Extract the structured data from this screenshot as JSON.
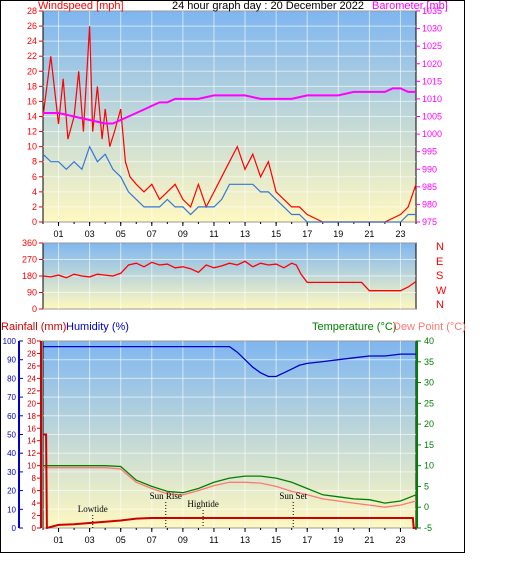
{
  "header": {
    "title": "24 hour graph day : 20 December 2022",
    "left_label": "Windspeed [mph]",
    "right_label": "Barometer [mb]"
  },
  "bottom_header": {
    "rain_label": "Rainfall (mm)",
    "humidity_label": "Humidity (%)",
    "temp_label": "Temperature (°C)",
    "dew_label": "Dew Point (°C)"
  },
  "colors": {
    "wind": "#ff0000",
    "wind_avg": "#3377dd",
    "barometer": "#ff00ff",
    "direction": "#ff0000",
    "rain": "#cc0000",
    "humidity": "#0000cc",
    "temperature": "#008000",
    "dewpoint": "#ff7777",
    "grad_top": "#7fb6f0",
    "grad_bottom": "#fff8c0"
  },
  "chart_data": [
    {
      "type": "line",
      "name": "wind-barometer",
      "x_ticks": [
        "01",
        "03",
        "05",
        "07",
        "09",
        "11",
        "13",
        "15",
        "17",
        "19",
        "21",
        "23"
      ],
      "y_left_ticks": [
        0,
        2,
        4,
        6,
        8,
        10,
        12,
        14,
        16,
        18,
        20,
        22,
        24,
        26,
        28
      ],
      "y_left_tick_labels": [
        "0",
        "2",
        "4",
        "6",
        "8",
        "10",
        "12",
        "14",
        "16",
        "18",
        "20",
        "22",
        "24",
        "26",
        "28"
      ],
      "y_right_ticks": [
        975,
        980,
        985,
        990,
        995,
        1000,
        1005,
        1010,
        1015,
        1020,
        1025,
        1030,
        1035
      ],
      "ylim_left": [
        0,
        28
      ],
      "ylim_right": [
        975,
        1035
      ],
      "xlim": [
        0,
        24
      ],
      "series": [
        {
          "key": "gust",
          "x": [
            0,
            0.5,
            1,
            1.3,
            1.6,
            2,
            2.3,
            2.6,
            3,
            3.2,
            3.5,
            3.8,
            4,
            4.3,
            4.6,
            5,
            5.3,
            5.6,
            6,
            6.5,
            7,
            7.5,
            8,
            8.5,
            9,
            9.5,
            10,
            10.5,
            11,
            11.5,
            12,
            12.5,
            13,
            13.5,
            14,
            14.5,
            15,
            15.5,
            16,
            16.5,
            17,
            18,
            19,
            20,
            21,
            22,
            23,
            23.5,
            24
          ],
          "y": [
            14,
            22,
            13,
            19,
            11,
            14,
            20,
            12,
            26,
            12,
            18,
            11,
            15,
            10,
            12,
            15,
            8,
            6,
            5,
            4,
            5,
            3,
            4,
            5,
            3,
            2,
            5,
            2,
            4,
            6,
            8,
            10,
            7,
            9,
            6,
            8,
            4,
            3,
            2,
            2,
            1,
            0,
            0,
            0,
            0,
            0,
            1,
            2,
            5
          ]
        },
        {
          "key": "wind",
          "x": [
            0,
            0.5,
            1,
            1.5,
            2,
            2.5,
            3,
            3.5,
            4,
            4.5,
            5,
            5.5,
            6,
            6.5,
            7,
            7.5,
            8,
            8.5,
            9,
            9.5,
            10,
            10.5,
            11,
            11.5,
            12,
            12.5,
            13,
            13.5,
            14,
            14.5,
            15,
            15.5,
            16,
            16.5,
            17,
            18,
            19,
            20,
            21,
            22,
            23,
            23.5,
            24
          ],
          "y": [
            9,
            8,
            8,
            7,
            8,
            7,
            10,
            8,
            9,
            7,
            6,
            4,
            3,
            2,
            2,
            2,
            3,
            2,
            2,
            1,
            2,
            2,
            2,
            3,
            5,
            5,
            5,
            5,
            4,
            4,
            3,
            2,
            1,
            1,
            0,
            0,
            0,
            0,
            0,
            0,
            0,
            1,
            1
          ]
        },
        {
          "key": "barometer",
          "x": [
            0,
            1,
            2,
            3,
            4,
            4.5,
            5,
            5.5,
            6,
            6.5,
            7,
            7.5,
            8,
            8.5,
            9,
            10,
            11,
            12,
            13,
            14,
            15,
            16,
            17,
            18,
            19,
            20,
            21,
            22,
            22.5,
            23,
            23.5,
            24
          ],
          "y": [
            1006,
            1006,
            1005,
            1004,
            1003,
            1003,
            1004,
            1005,
            1006,
            1007,
            1008,
            1009,
            1009,
            1010,
            1010,
            1010,
            1011,
            1011,
            1011,
            1010,
            1010,
            1010,
            1011,
            1011,
            1011,
            1012,
            1012,
            1012,
            1013,
            1013,
            1012,
            1012
          ]
        }
      ]
    },
    {
      "type": "line",
      "name": "wind-direction",
      "x_ticks": [],
      "y_ticks": [
        0,
        90,
        180,
        270,
        360
      ],
      "y_tick_labels": [
        "0",
        "90",
        "180",
        "270",
        "360"
      ],
      "compass": [
        "N",
        "W",
        "S",
        "E",
        "N"
      ],
      "ylim": [
        0,
        360
      ],
      "xlim": [
        0,
        24
      ],
      "series": [
        {
          "key": "direction",
          "x": [
            0,
            0.5,
            1,
            1.5,
            2,
            2.5,
            3,
            3.5,
            4,
            4.5,
            5,
            5.5,
            6,
            6.5,
            7,
            7.5,
            8,
            8.5,
            9,
            9.5,
            10,
            10.5,
            11,
            11.5,
            12,
            12.5,
            13,
            13.5,
            14,
            14.5,
            15,
            15.5,
            16,
            16.3,
            16.6,
            17,
            19,
            20.5,
            21,
            22,
            23,
            23.5,
            24
          ],
          "y": [
            180,
            175,
            185,
            170,
            190,
            180,
            175,
            190,
            185,
            180,
            195,
            240,
            250,
            230,
            255,
            240,
            245,
            225,
            230,
            220,
            200,
            240,
            225,
            235,
            250,
            240,
            260,
            230,
            250,
            240,
            245,
            225,
            250,
            240,
            190,
            145,
            145,
            145,
            100,
            100,
            100,
            120,
            150
          ]
        }
      ]
    },
    {
      "type": "line",
      "name": "temp-humidity-rain",
      "x_ticks": [
        "01",
        "03",
        "05",
        "07",
        "09",
        "11",
        "13",
        "15",
        "17",
        "19",
        "21",
        "23"
      ],
      "y_humidity_ticks": [
        0,
        10,
        20,
        30,
        40,
        50,
        60,
        70,
        80,
        90,
        100
      ],
      "y_humidity_tick_labels": [
        "0",
        "10",
        "20",
        "30",
        "40",
        "50",
        "60",
        "70",
        "80",
        "90",
        "100"
      ],
      "y_rain_ticks": [
        0,
        2,
        4,
        6,
        8,
        10,
        12,
        14,
        16,
        18,
        20,
        22,
        24,
        26,
        28,
        30
      ],
      "y_rain_tick_labels": [
        "0",
        "2",
        "4",
        "6",
        "8",
        "10",
        "12",
        "14",
        "16",
        "18",
        "20",
        "22",
        "24",
        "26",
        "28",
        "30"
      ],
      "y_temp_ticks": [
        -5,
        0,
        5,
        10,
        15,
        20,
        25,
        30,
        35,
        40
      ],
      "ylim_humidity": [
        0,
        100
      ],
      "ylim_rain": [
        0,
        30
      ],
      "ylim_temp": [
        -5,
        40
      ],
      "xlim": [
        0,
        24
      ],
      "events": [
        {
          "x": 3.2,
          "label": "Lowtide"
        },
        {
          "x": 7.9,
          "label": "Sun Rise"
        },
        {
          "x": 10.3,
          "label": "Hightide"
        },
        {
          "x": 16.1,
          "label": "Sun Set"
        }
      ],
      "series": [
        {
          "key": "humidity",
          "x": [
            0,
            2,
            4,
            6,
            8,
            10,
            11,
            12,
            12.5,
            13,
            13.5,
            14,
            14.5,
            15,
            15.5,
            16,
            16.5,
            17,
            18,
            19,
            20,
            21,
            22,
            23,
            24
          ],
          "y": [
            97,
            97,
            97,
            97,
            97,
            97,
            97,
            97,
            94,
            90,
            86,
            83,
            81,
            81,
            83,
            85,
            87,
            88,
            89,
            90,
            91,
            92,
            92,
            93,
            93
          ]
        },
        {
          "key": "temperature",
          "x": [
            0,
            1,
            2,
            3,
            4,
            5,
            6,
            7,
            8,
            9,
            10,
            11,
            12,
            13,
            14,
            15,
            16,
            17,
            18,
            19,
            20,
            21,
            22,
            23,
            24
          ],
          "y": [
            10,
            10,
            10,
            10,
            10,
            9.8,
            6.5,
            5,
            3.8,
            3.5,
            4.5,
            6,
            7,
            7.5,
            7.5,
            7,
            6,
            4.5,
            3,
            2.5,
            2,
            1.8,
            1,
            1.5,
            3
          ]
        },
        {
          "key": "dewpoint",
          "x": [
            0,
            1,
            2,
            3,
            4,
            5,
            6,
            7,
            8,
            9,
            10,
            11,
            12,
            13,
            14,
            15,
            16,
            17,
            18,
            19,
            20,
            21,
            22,
            23,
            24
          ],
          "y": [
            9.5,
            9.5,
            9.5,
            9.5,
            9.5,
            9.2,
            6,
            4.5,
            3.2,
            3,
            4,
            5.2,
            6,
            6,
            5.8,
            5,
            3.8,
            3,
            2,
            1.5,
            1,
            0.5,
            0,
            0.5,
            1.5
          ]
        },
        {
          "key": "rainfall",
          "x": [
            0,
            0.2,
            0.25,
            1,
            2,
            3,
            4,
            5,
            6,
            7,
            8,
            9,
            10,
            11,
            12,
            13,
            14,
            15,
            16,
            17,
            18,
            19,
            20,
            21,
            22,
            23,
            23.8,
            23.85,
            24
          ],
          "y": [
            15,
            15,
            0,
            0.5,
            0.6,
            0.8,
            1,
            1.2,
            1.5,
            1.6,
            1.6,
            1.6,
            1.6,
            1.6,
            1.6,
            1.6,
            1.6,
            1.6,
            1.6,
            1.6,
            1.6,
            1.6,
            1.6,
            1.6,
            1.6,
            1.6,
            1.6,
            0,
            0
          ]
        }
      ]
    }
  ]
}
